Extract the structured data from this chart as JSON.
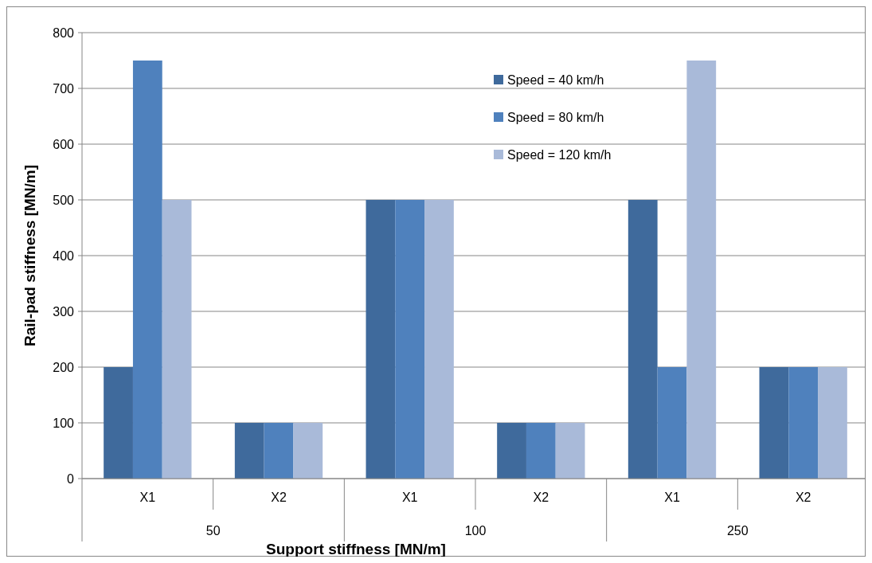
{
  "chart_data": {
    "type": "bar",
    "xlabel": "Support stiffness [MN/m]",
    "ylabel": "Rail-pad stiffness [MN/m]",
    "categories": [
      "X1",
      "X2",
      "X1",
      "X2",
      "X1",
      "X2"
    ],
    "annotations": [
      "50",
      "100",
      "250"
    ],
    "series": [
      {
        "name": "Speed = 40 km/h",
        "color": "#3f6a9c",
        "values": [
          200,
          100,
          500,
          100,
          500,
          200
        ]
      },
      {
        "name": "Speed = 80 km/h",
        "color": "#4f81bd",
        "values": [
          750,
          100,
          500,
          100,
          200,
          200
        ]
      },
      {
        "name": "Speed = 120 km/h",
        "color": "#a9bad9",
        "values": [
          500,
          100,
          500,
          100,
          750,
          200
        ]
      }
    ],
    "ylim": [
      0,
      800
    ],
    "yticks": [
      0,
      100,
      200,
      300,
      400,
      500,
      600,
      700,
      800
    ],
    "grid": "y",
    "legend": "top right"
  }
}
